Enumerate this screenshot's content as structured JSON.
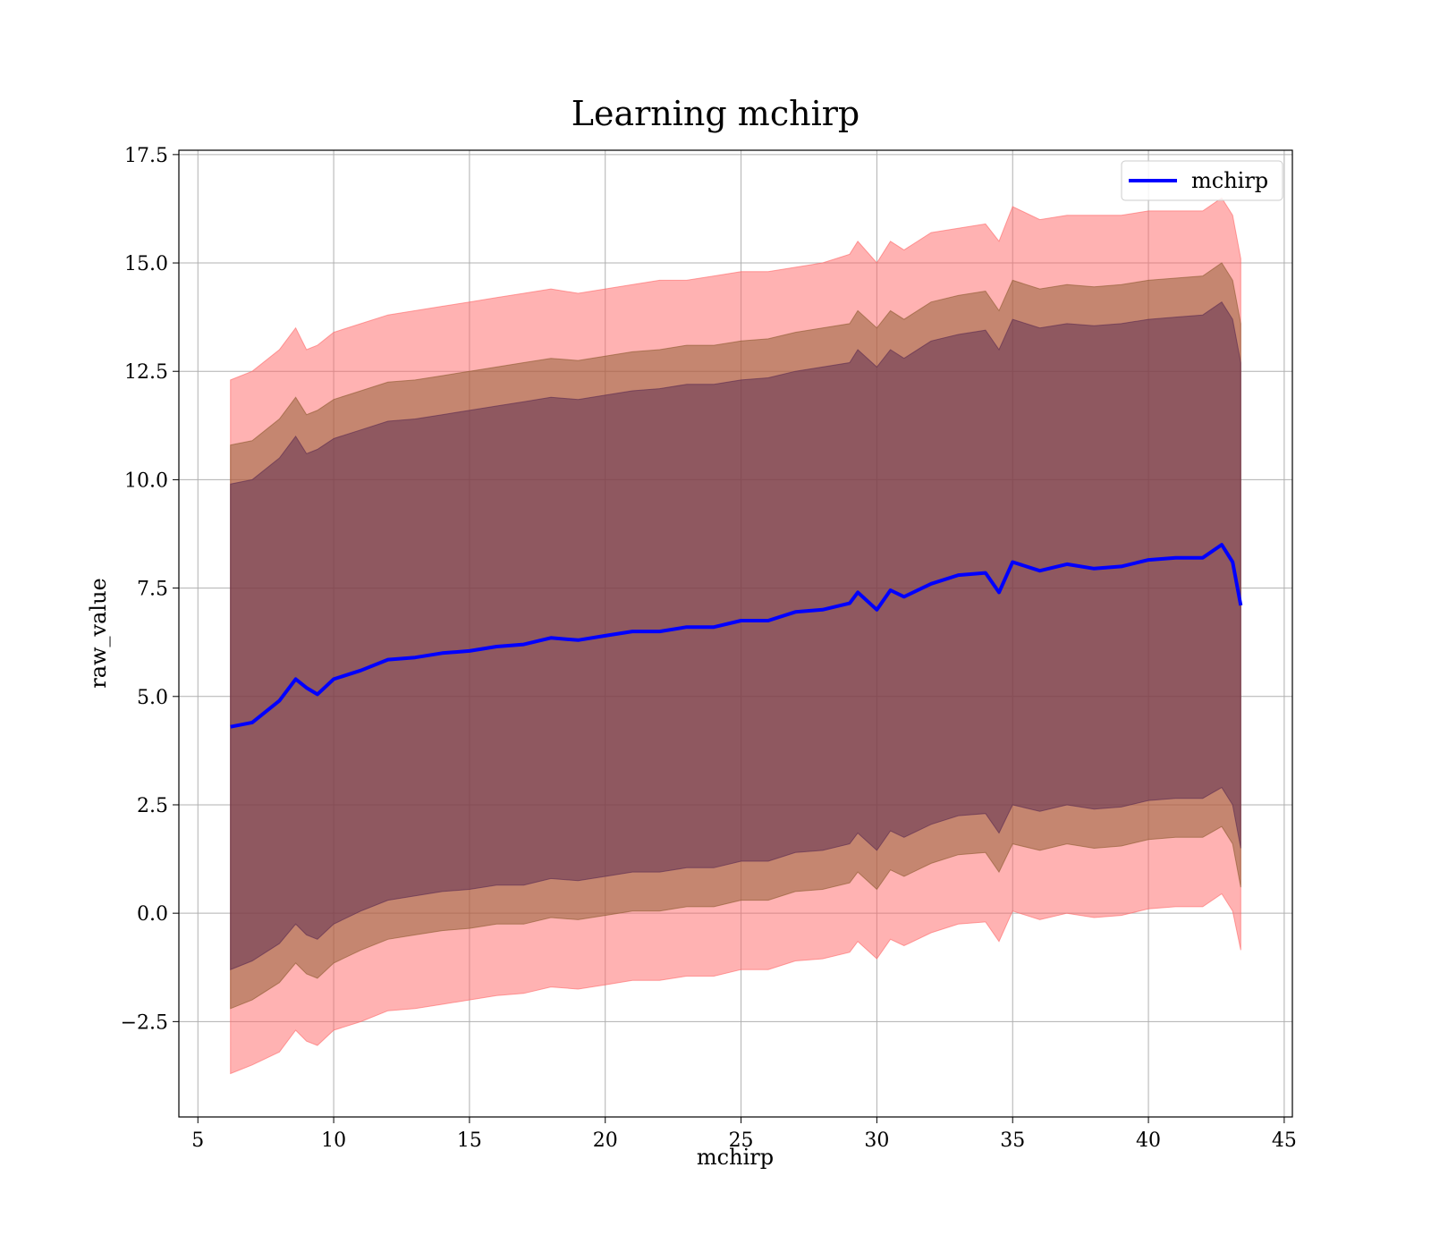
{
  "chart_data": {
    "type": "line",
    "title": "Learning mchirp",
    "xlabel": "mchirp",
    "ylabel": "raw_value",
    "xlim": [
      4.3,
      45.3
    ],
    "ylim": [
      -4.7,
      17.6
    ],
    "x_ticks": [
      5,
      10,
      15,
      20,
      25,
      30,
      35,
      40,
      45
    ],
    "x_tick_labels": [
      "5",
      "10",
      "15",
      "20",
      "25",
      "30",
      "35",
      "40",
      "45"
    ],
    "y_ticks": [
      -2.5,
      0.0,
      2.5,
      5.0,
      7.5,
      10.0,
      12.5,
      15.0,
      17.5
    ],
    "y_tick_labels": [
      "−2.5",
      "0.0",
      "2.5",
      "5.0",
      "7.5",
      "10.0",
      "12.5",
      "15.0",
      "17.5"
    ],
    "grid": true,
    "legend": {
      "position": "top-right",
      "entries": [
        "mchirp"
      ]
    },
    "x": [
      6.2,
      7,
      8,
      8.6,
      9,
      9.4,
      10,
      11,
      12,
      13,
      14,
      15,
      16,
      17,
      18,
      19,
      20,
      21,
      22,
      23,
      24,
      25,
      26,
      27,
      28,
      29,
      29.3,
      30,
      30.5,
      31,
      32,
      33,
      34,
      34.5,
      35,
      36,
      37,
      38,
      39,
      40,
      41,
      42,
      42.7,
      43.1,
      43.4
    ],
    "series": [
      {
        "name": "mchirp",
        "color": "#0000ff",
        "values": [
          4.3,
          4.4,
          4.9,
          5.4,
          5.2,
          5.05,
          5.4,
          5.6,
          5.85,
          5.9,
          6.0,
          6.05,
          6.15,
          6.2,
          6.35,
          6.3,
          6.4,
          6.5,
          6.5,
          6.6,
          6.6,
          6.75,
          6.75,
          6.95,
          7.0,
          7.15,
          7.4,
          7.0,
          7.45,
          7.3,
          7.6,
          7.8,
          7.85,
          7.4,
          8.1,
          7.9,
          8.05,
          7.95,
          8.0,
          8.15,
          8.2,
          8.2,
          8.5,
          8.1,
          7.1
        ]
      }
    ],
    "bands": [
      {
        "color": "#ff6666",
        "upper": [
          12.3,
          12.5,
          13.0,
          13.5,
          13.0,
          13.1,
          13.4,
          13.6,
          13.8,
          13.9,
          14.0,
          14.1,
          14.2,
          14.3,
          14.4,
          14.3,
          14.4,
          14.5,
          14.6,
          14.6,
          14.7,
          14.8,
          14.8,
          14.9,
          15.0,
          15.2,
          15.5,
          15.0,
          15.5,
          15.3,
          15.7,
          15.8,
          15.9,
          15.5,
          16.3,
          16.0,
          16.1,
          16.1,
          16.1,
          16.2,
          16.2,
          16.2,
          16.5,
          16.1,
          15.1
        ],
        "lower": [
          -3.7,
          -3.5,
          -3.2,
          -2.7,
          -2.95,
          -3.05,
          -2.7,
          -2.5,
          -2.25,
          -2.2,
          -2.1,
          -2.0,
          -1.9,
          -1.85,
          -1.7,
          -1.75,
          -1.65,
          -1.55,
          -1.55,
          -1.45,
          -1.45,
          -1.3,
          -1.3,
          -1.1,
          -1.05,
          -0.9,
          -0.65,
          -1.05,
          -0.6,
          -0.75,
          -0.45,
          -0.25,
          -0.2,
          -0.65,
          0.05,
          -0.15,
          0.0,
          -0.1,
          -0.05,
          0.1,
          0.15,
          0.15,
          0.45,
          0.05,
          -0.85
        ]
      },
      {
        "color": "#8c5a2e",
        "upper": [
          10.8,
          10.9,
          11.4,
          11.9,
          11.5,
          11.6,
          11.85,
          12.05,
          12.25,
          12.3,
          12.4,
          12.5,
          12.6,
          12.7,
          12.8,
          12.75,
          12.85,
          12.95,
          13.0,
          13.1,
          13.1,
          13.2,
          13.25,
          13.4,
          13.5,
          13.6,
          13.9,
          13.5,
          13.9,
          13.7,
          14.1,
          14.25,
          14.35,
          13.9,
          14.6,
          14.4,
          14.5,
          14.45,
          14.5,
          14.6,
          14.65,
          14.7,
          15.0,
          14.6,
          13.6
        ],
        "lower": [
          -2.2,
          -2.0,
          -1.6,
          -1.15,
          -1.4,
          -1.5,
          -1.15,
          -0.85,
          -0.6,
          -0.5,
          -0.4,
          -0.35,
          -0.25,
          -0.25,
          -0.1,
          -0.15,
          -0.05,
          0.05,
          0.05,
          0.15,
          0.15,
          0.3,
          0.3,
          0.5,
          0.55,
          0.7,
          0.95,
          0.55,
          1.0,
          0.85,
          1.15,
          1.35,
          1.4,
          0.95,
          1.6,
          1.45,
          1.6,
          1.5,
          1.55,
          1.7,
          1.75,
          1.75,
          2.0,
          1.6,
          0.6
        ]
      },
      {
        "color": "#5a2a50",
        "upper": [
          9.9,
          10.0,
          10.5,
          11.0,
          10.6,
          10.7,
          10.95,
          11.15,
          11.35,
          11.4,
          11.5,
          11.6,
          11.7,
          11.8,
          11.9,
          11.85,
          11.95,
          12.05,
          12.1,
          12.2,
          12.2,
          12.3,
          12.35,
          12.5,
          12.6,
          12.7,
          13.0,
          12.6,
          13.0,
          12.8,
          13.2,
          13.35,
          13.45,
          13.0,
          13.7,
          13.5,
          13.6,
          13.55,
          13.6,
          13.7,
          13.75,
          13.8,
          14.1,
          13.7,
          12.7
        ],
        "lower": [
          -1.3,
          -1.1,
          -0.7,
          -0.25,
          -0.5,
          -0.6,
          -0.25,
          0.05,
          0.3,
          0.4,
          0.5,
          0.55,
          0.65,
          0.65,
          0.8,
          0.75,
          0.85,
          0.95,
          0.95,
          1.05,
          1.05,
          1.2,
          1.2,
          1.4,
          1.45,
          1.6,
          1.85,
          1.45,
          1.9,
          1.75,
          2.05,
          2.25,
          2.3,
          1.85,
          2.5,
          2.35,
          2.5,
          2.4,
          2.45,
          2.6,
          2.65,
          2.65,
          2.9,
          2.5,
          1.5
        ]
      }
    ]
  }
}
